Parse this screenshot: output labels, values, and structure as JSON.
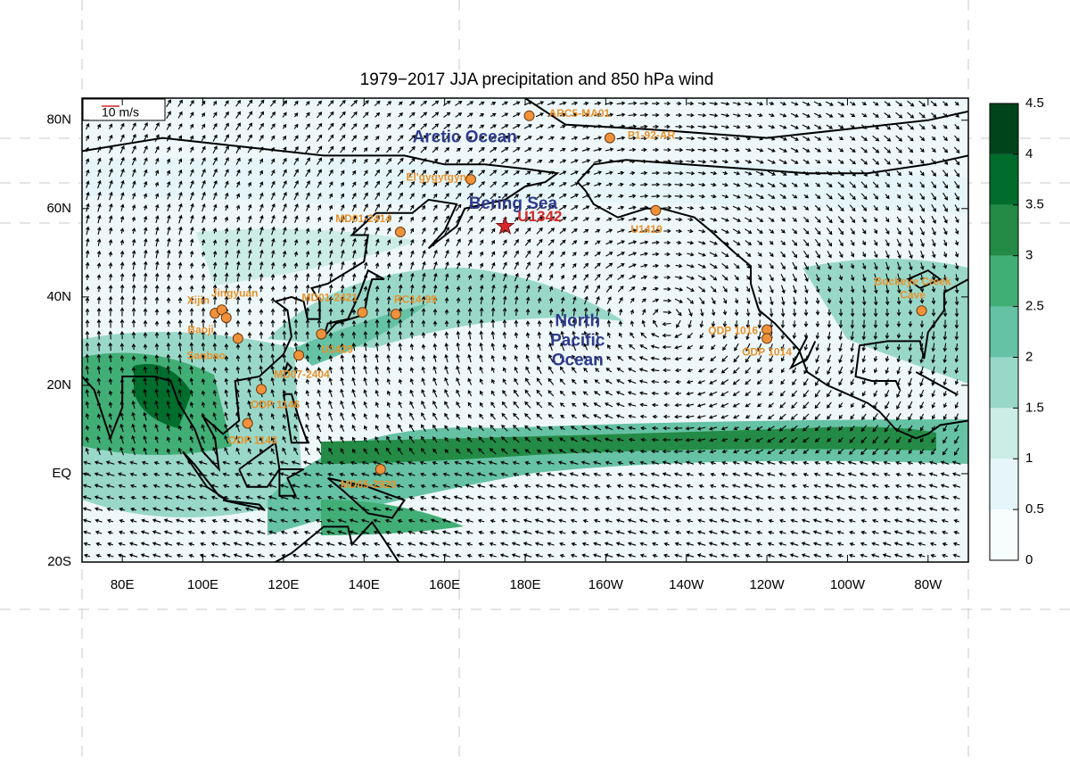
{
  "title": "1979−2017 JJA precipitation and 850 hPa wind",
  "vector_scale": "10 m/s",
  "map": {
    "lon_range": [
      70,
      290
    ],
    "lat_range": [
      -20,
      85
    ],
    "lon_ticks": [
      {
        "value": 80,
        "label": "80E"
      },
      {
        "value": 100,
        "label": "100E"
      },
      {
        "value": 120,
        "label": "120E"
      },
      {
        "value": 140,
        "label": "140E"
      },
      {
        "value": 160,
        "label": "160E"
      },
      {
        "value": 180,
        "label": "180E"
      },
      {
        "value": 200,
        "label": "160W"
      },
      {
        "value": 220,
        "label": "140W"
      },
      {
        "value": 240,
        "label": "120W"
      },
      {
        "value": 260,
        "label": "100W"
      },
      {
        "value": 280,
        "label": "80W"
      }
    ],
    "lat_ticks": [
      {
        "value": -20,
        "label": "20S"
      },
      {
        "value": 0,
        "label": "EQ"
      },
      {
        "value": 20,
        "label": "20N"
      },
      {
        "value": 40,
        "label": "40N"
      },
      {
        "value": 60,
        "label": "60N"
      },
      {
        "value": 80,
        "label": "80N"
      }
    ],
    "regions": [
      {
        "lines": [
          "Arctic Ocean"
        ],
        "lon": 165,
        "lat": 76
      },
      {
        "lines": [
          "Bering Sea"
        ],
        "lon": 177,
        "lat": 61
      },
      {
        "lines": [
          "North",
          "Pacific",
          "Ocean"
        ],
        "lon": 193,
        "lat": 30
      }
    ],
    "target_site": {
      "label": "U1342",
      "lon": 175,
      "lat": 56,
      "color": "#d62728"
    },
    "sites": [
      {
        "label": [
          "ARC5-MA01"
        ],
        "lon": 181,
        "lat": 81
      },
      {
        "label": [
          "P1-92-AR"
        ],
        "lon": 201,
        "lat": 76
      },
      {
        "label": [
          "El'gygytgyn"
        ],
        "lon": 166.5,
        "lat": 66.6
      },
      {
        "label": [
          "MD01-2414"
        ],
        "lon": 149,
        "lat": 54.7
      },
      {
        "label": [
          "U1419"
        ],
        "lon": 212.4,
        "lat": 59.6
      },
      {
        "label": [
          "Xijin"
        ],
        "lon": 103,
        "lat": 36.3
      },
      {
        "label": [
          "Jingyuan"
        ],
        "lon": 104.7,
        "lat": 37.1
      },
      {
        "label": [
          "Baoji"
        ],
        "lon": 105.8,
        "lat": 35.3
      },
      {
        "label": [
          "Sanbao"
        ],
        "lon": 108.7,
        "lat": 30.6
      },
      {
        "label": [
          "MD01-2421"
        ],
        "lon": 139.6,
        "lat": 36.5
      },
      {
        "label": [
          "RC14-99"
        ],
        "lon": 147.9,
        "lat": 36.1
      },
      {
        "label": [
          "U1429"
        ],
        "lon": 129.4,
        "lat": 31.6
      },
      {
        "label": [
          "MD07-2404"
        ],
        "lon": 123.8,
        "lat": 26.8
      },
      {
        "label": [
          "ODP 1146"
        ],
        "lon": 114.5,
        "lat": 19.1
      },
      {
        "label": [
          "ODP 1143"
        ],
        "lon": 111.1,
        "lat": 11.4
      },
      {
        "label": [
          "MD05-2920"
        ],
        "lon": 144.1,
        "lat": 1
      },
      {
        "label": [
          "ODP 1016"
        ],
        "lon": 240,
        "lat": 32.6
      },
      {
        "label": [
          "ODP 1014"
        ],
        "lon": 240,
        "lat": 30.6
      },
      {
        "label": [
          "Buckeye Creek",
          "Cave"
        ],
        "lon": 278.4,
        "lat": 36.9
      }
    ]
  },
  "colorbar": {
    "ticks": [
      0,
      0.5,
      1,
      1.5,
      2,
      2.5,
      3,
      3.5,
      4,
      4.5
    ],
    "colors": [
      "#f7fcfd",
      "#e5f5f9",
      "#ccece6",
      "#99d8c9",
      "#66c2a4",
      "#41ae76",
      "#238b45",
      "#006d2c",
      "#00441b"
    ]
  }
}
